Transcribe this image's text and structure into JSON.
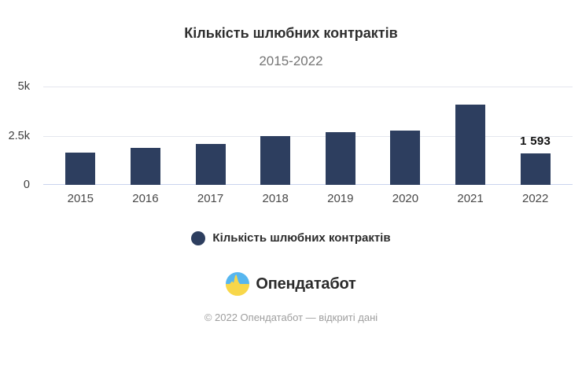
{
  "header": {
    "title": "Кількість шлюбних контрактів",
    "subtitle": "2015-2022"
  },
  "chart_data": {
    "type": "bar",
    "title": "Кількість шлюбних контрактів",
    "subtitle": "2015-2022",
    "categories": [
      "2015",
      "2016",
      "2017",
      "2018",
      "2019",
      "2020",
      "2021",
      "2022"
    ],
    "values": [
      1650,
      1900,
      2100,
      2500,
      2700,
      2750,
      4100,
      1593
    ],
    "value_labels": [
      null,
      null,
      null,
      null,
      null,
      null,
      null,
      "1 593"
    ],
    "xlabel": "",
    "ylabel": "",
    "ylim": [
      0,
      5000
    ],
    "yticks": [
      {
        "value": 0,
        "label": "0"
      },
      {
        "value": 2500,
        "label": "2.5k"
      },
      {
        "value": 5000,
        "label": "5k"
      }
    ],
    "grid": true,
    "bar_color": "#2d3e5f",
    "legend_position": "bottom"
  },
  "legend": {
    "marker_icon": "legend-dot-icon",
    "marker_color": "#2d3e5f",
    "label": "Кількість шлюбних контрактів"
  },
  "branding": {
    "logo_icon": "opendatabot-pulse-icon",
    "logo_text": "Опендатабот",
    "logo_colors": {
      "blue": "#57b6ef",
      "yellow": "#f8d74a"
    }
  },
  "footer": {
    "copyright": "© 2022 Опендатабот — відкриті дані"
  }
}
